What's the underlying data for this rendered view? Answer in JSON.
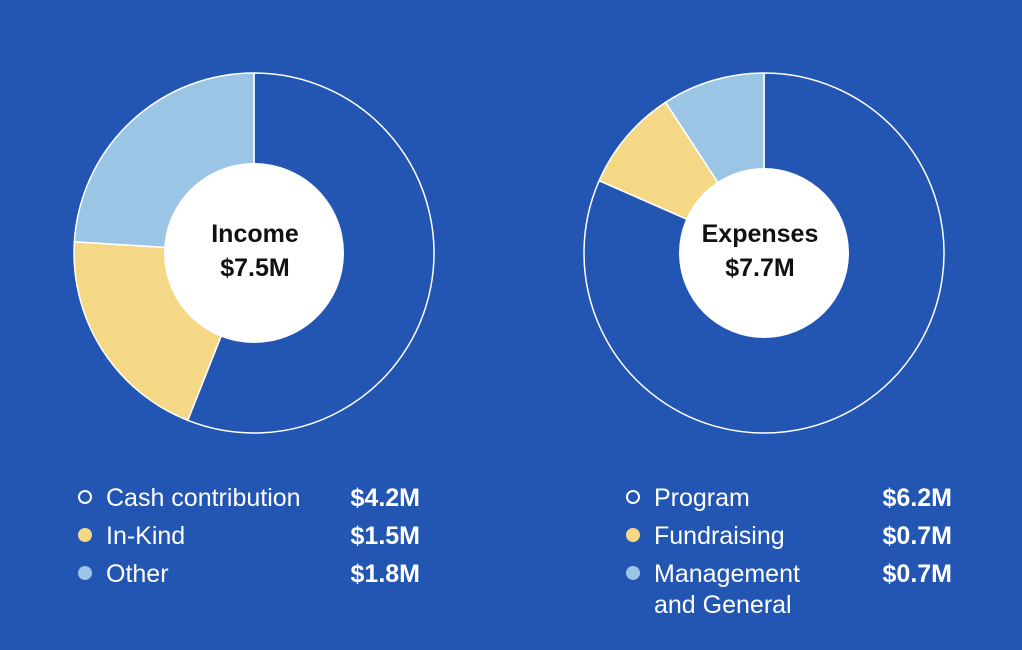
{
  "colors": {
    "background": "#2355b3",
    "slice_blue": "#2355b3",
    "slice_yellow": "#f5d886",
    "slice_lightblue": "#9bc5e5",
    "center": "#ffffff"
  },
  "chart_data": [
    {
      "type": "pie",
      "center_title": "Income",
      "center_value": "$7.5M",
      "categories": [
        "Cash contribution",
        "In-Kind",
        "Other"
      ],
      "values": [
        4.2,
        1.5,
        1.8
      ],
      "value_labels": [
        "$4.2M",
        "$1.5M",
        "$1.8M"
      ],
      "slice_colors": [
        "#2355b3",
        "#f5d886",
        "#9bc5e5"
      ],
      "legend_placement": "bottom"
    },
    {
      "type": "pie",
      "center_title": "Expenses",
      "center_value": "$7.7M",
      "categories": [
        "Program",
        "Fundraising",
        "Management and General"
      ],
      "label_lines": [
        [
          "Program"
        ],
        [
          "Fundraising"
        ],
        [
          "Management",
          "and General"
        ]
      ],
      "values": [
        6.2,
        0.7,
        0.7
      ],
      "value_labels": [
        "$6.2M",
        "$0.7M",
        "$0.7M"
      ],
      "slice_colors": [
        "#2355b3",
        "#f5d886",
        "#9bc5e5"
      ],
      "legend_placement": "bottom"
    }
  ]
}
